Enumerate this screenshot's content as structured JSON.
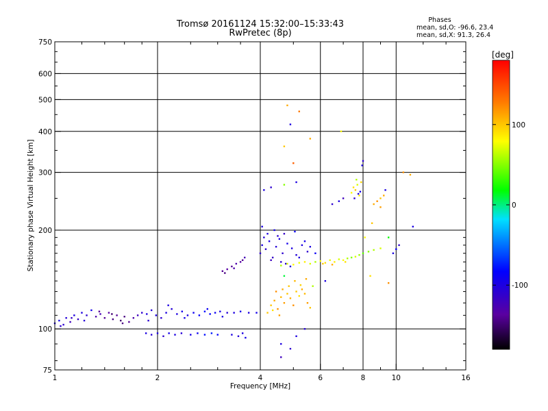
{
  "chart_data": {
    "type": "scatter",
    "title": "Tromsø 20161124 15:32:00–15:33:43",
    "subtitle": "RwPretec (8p)",
    "stats": {
      "heading": "Phases",
      "o_line": "mean, sd,O: -96.6, 23.4",
      "x_line": "mean, sd,X:  91.3, 26.4"
    },
    "xlabel": "Frequency [MHz]",
    "ylabel": "Stationary phase Virtual Height [km]",
    "xscale": "log",
    "yscale": "log",
    "xlim": [
      1,
      16
    ],
    "ylim": [
      75,
      750
    ],
    "xticks": [
      1,
      2,
      4,
      6,
      8,
      10,
      16
    ],
    "xtick_labels": [
      "1",
      "2",
      "4",
      "6",
      "8",
      "10",
      "16"
    ],
    "yticks": [
      75,
      100,
      200,
      300,
      400,
      500,
      600,
      750
    ],
    "ytick_labels": [
      "75",
      "100",
      "200",
      "300",
      "400",
      "500",
      "600",
      "750"
    ],
    "grid_x": [
      1,
      2,
      4,
      6,
      8,
      10
    ],
    "grid_y": [
      100,
      200,
      300,
      400,
      500,
      600
    ],
    "grid": true,
    "colorbar": {
      "label": "[deg]",
      "min": -180,
      "max": 180,
      "ticks": [
        100,
        0,
        -100
      ],
      "tick_labels": [
        "100",
        "0",
        "-100"
      ]
    },
    "series": [
      {
        "values": [
          [
            1.0,
            104,
            -100
          ],
          [
            1.03,
            106,
            -95
          ],
          [
            1.06,
            103,
            -110
          ],
          [
            1.08,
            108,
            -105
          ],
          [
            1.11,
            105,
            -120
          ],
          [
            1.14,
            110,
            -100
          ],
          [
            1.17,
            107,
            -115
          ],
          [
            1.2,
            112,
            -100
          ],
          [
            1.24,
            110,
            -110
          ],
          [
            1.28,
            114,
            -95
          ],
          [
            1.32,
            109,
            -130
          ],
          [
            1.36,
            111,
            -125
          ],
          [
            1.4,
            108,
            -140
          ],
          [
            1.44,
            112,
            -135
          ],
          [
            1.48,
            107,
            -145
          ],
          [
            1.52,
            110,
            -140
          ],
          [
            1.56,
            106,
            -150
          ],
          [
            1.6,
            109,
            -145
          ],
          [
            1.65,
            105,
            -140
          ],
          [
            1.7,
            108,
            -130
          ],
          [
            1.75,
            110,
            -120
          ],
          [
            1.8,
            112,
            -110
          ],
          [
            1.86,
            111,
            -100
          ],
          [
            1.92,
            114,
            -105
          ],
          [
            1.98,
            110,
            -100
          ],
          [
            2.05,
            108,
            -110
          ],
          [
            2.12,
            112,
            -100
          ],
          [
            2.2,
            115,
            -105
          ],
          [
            2.28,
            111,
            -100
          ],
          [
            2.36,
            113,
            -95
          ],
          [
            2.45,
            110,
            -100
          ],
          [
            2.55,
            112,
            -90
          ],
          [
            2.65,
            110,
            -85
          ],
          [
            2.75,
            113,
            -80
          ],
          [
            2.85,
            111,
            -85
          ],
          [
            2.95,
            112,
            -90
          ],
          [
            3.05,
            113,
            -100
          ],
          [
            3.2,
            112,
            -105
          ],
          [
            3.35,
            112,
            -100
          ],
          [
            3.5,
            113,
            -95
          ],
          [
            3.7,
            112,
            -100
          ],
          [
            3.9,
            112,
            -95
          ],
          [
            1.04,
            102,
            -110
          ],
          [
            1.12,
            108,
            -115
          ],
          [
            1.22,
            106,
            -105
          ],
          [
            1.35,
            113,
            -140
          ],
          [
            1.47,
            111,
            -150
          ],
          [
            1.58,
            104,
            -145
          ],
          [
            1.88,
            106,
            -110
          ],
          [
            2.15,
            118,
            -100
          ],
          [
            2.4,
            108,
            -95
          ],
          [
            2.8,
            115,
            -90
          ],
          [
            3.1,
            109,
            -100
          ]
        ]
      },
      {
        "values": [
          [
            1.85,
            97,
            -100
          ],
          [
            1.92,
            96,
            -105
          ],
          [
            2.0,
            97,
            -100
          ],
          [
            2.08,
            95,
            -110
          ],
          [
            2.16,
            97,
            -95
          ],
          [
            2.25,
            96,
            -100
          ],
          [
            2.35,
            97,
            -105
          ],
          [
            2.5,
            96,
            -95
          ],
          [
            2.62,
            97,
            -90
          ],
          [
            2.75,
            96,
            -80
          ],
          [
            2.88,
            97,
            -75
          ],
          [
            3.0,
            96,
            -85
          ],
          [
            3.3,
            96,
            -100
          ],
          [
            3.45,
            95,
            -105
          ],
          [
            3.55,
            97,
            -100
          ],
          [
            3.62,
            94,
            -95
          ]
        ]
      },
      {
        "values": [
          [
            3.1,
            150,
            -140
          ],
          [
            3.2,
            152,
            -135
          ],
          [
            3.3,
            155,
            -140
          ],
          [
            3.4,
            158,
            -130
          ],
          [
            3.5,
            160,
            -135
          ],
          [
            3.6,
            165,
            -125
          ],
          [
            3.15,
            148,
            -145
          ],
          [
            3.35,
            153,
            -130
          ],
          [
            3.55,
            162,
            -140
          ]
        ]
      },
      {
        "values": [
          [
            4.0,
            170,
            -110
          ],
          [
            4.05,
            180,
            -100
          ],
          [
            4.1,
            190,
            -105
          ],
          [
            4.15,
            175,
            -110
          ],
          [
            4.25,
            185,
            -100
          ],
          [
            4.35,
            165,
            -115
          ],
          [
            4.45,
            178,
            -105
          ],
          [
            4.55,
            188,
            -100
          ],
          [
            4.65,
            170,
            -110
          ],
          [
            4.8,
            182,
            -95
          ],
          [
            4.95,
            176,
            -100
          ],
          [
            5.1,
            168,
            -105
          ],
          [
            5.3,
            180,
            -100
          ],
          [
            5.5,
            172,
            -110
          ],
          [
            4.2,
            195,
            -100
          ],
          [
            4.4,
            200,
            -95
          ],
          [
            4.6,
            160,
            -110
          ],
          [
            4.75,
            158,
            -105
          ],
          [
            4.9,
            155,
            -100
          ],
          [
            5.05,
            198,
            -90
          ],
          [
            5.2,
            165,
            -100
          ],
          [
            4.3,
            162,
            -120
          ],
          [
            4.5,
            192,
            -110
          ],
          [
            5.4,
            185,
            -95
          ],
          [
            5.6,
            178,
            -100
          ],
          [
            5.8,
            170,
            -90
          ],
          [
            4.05,
            205,
            -100
          ],
          [
            4.7,
            195,
            -115
          ]
        ]
      },
      {
        "values": [
          [
            4.6,
            156,
            60
          ],
          [
            4.8,
            158,
            70
          ],
          [
            5.0,
            157,
            80
          ],
          [
            5.2,
            159,
            75
          ],
          [
            5.4,
            160,
            85
          ],
          [
            5.6,
            158,
            70
          ],
          [
            5.8,
            160,
            60
          ],
          [
            6.0,
            161,
            80
          ],
          [
            6.2,
            159,
            90
          ],
          [
            6.4,
            162,
            75
          ],
          [
            6.6,
            160,
            85
          ],
          [
            6.8,
            163,
            70
          ],
          [
            7.0,
            162,
            80
          ],
          [
            7.2,
            164,
            60
          ],
          [
            7.4,
            165,
            50
          ],
          [
            7.6,
            166,
            70
          ],
          [
            7.8,
            168,
            55
          ],
          [
            8.0,
            170,
            40
          ],
          [
            8.3,
            172,
            50
          ],
          [
            8.6,
            174,
            60
          ],
          [
            9.0,
            176,
            70
          ],
          [
            6.1,
            158,
            100
          ],
          [
            6.5,
            157,
            110
          ],
          [
            7.1,
            160,
            90
          ]
        ]
      },
      {
        "values": [
          [
            4.3,
            118,
            100
          ],
          [
            4.4,
            122,
            110
          ],
          [
            4.5,
            115,
            120
          ],
          [
            4.6,
            125,
            105
          ],
          [
            4.7,
            120,
            115
          ],
          [
            4.8,
            128,
            100
          ],
          [
            4.9,
            124,
            110
          ],
          [
            5.0,
            118,
            120
          ],
          [
            5.1,
            130,
            100
          ],
          [
            5.2,
            126,
            90
          ],
          [
            5.3,
            132,
            110
          ],
          [
            5.4,
            128,
            105
          ],
          [
            5.5,
            120,
            115
          ],
          [
            4.2,
            112,
            100
          ],
          [
            4.35,
            114,
            90
          ],
          [
            4.45,
            130,
            120
          ],
          [
            4.65,
            132,
            110
          ],
          [
            4.85,
            135,
            100
          ],
          [
            5.05,
            140,
            105
          ],
          [
            5.25,
            136,
            95
          ],
          [
            5.45,
            142,
            110
          ],
          [
            5.6,
            116,
            100
          ],
          [
            4.55,
            110,
            115
          ]
        ]
      },
      {
        "values": [
          [
            7.4,
            260,
            80
          ],
          [
            7.5,
            270,
            90
          ],
          [
            7.6,
            265,
            100
          ],
          [
            7.7,
            275,
            70
          ],
          [
            7.8,
            255,
            85
          ],
          [
            7.9,
            280,
            95
          ],
          [
            7.55,
            250,
            -110
          ],
          [
            7.75,
            258,
            -100
          ],
          [
            7.85,
            262,
            -95
          ],
          [
            7.65,
            285,
            60
          ]
        ]
      },
      {
        "values": [
          [
            8.6,
            240,
            110
          ],
          [
            8.8,
            245,
            120
          ],
          [
            9.0,
            250,
            100
          ],
          [
            9.2,
            255,
            110
          ],
          [
            9.0,
            235,
            115
          ]
        ]
      },
      {
        "values": [
          [
            4.1,
            265,
            -100
          ],
          [
            4.3,
            270,
            -110
          ],
          [
            4.7,
            275,
            50
          ],
          [
            5.1,
            280,
            -100
          ],
          [
            6.5,
            240,
            -110
          ],
          [
            6.8,
            245,
            -100
          ],
          [
            7.0,
            250,
            -120
          ],
          [
            8.0,
            325,
            -110
          ],
          [
            7.95,
            315,
            -100
          ],
          [
            4.8,
            480,
            110
          ],
          [
            5.2,
            460,
            130
          ],
          [
            4.9,
            420,
            -100
          ],
          [
            5.6,
            380,
            110
          ],
          [
            6.9,
            400,
            80
          ],
          [
            4.7,
            360,
            100
          ],
          [
            5.0,
            320,
            140
          ],
          [
            9.3,
            265,
            -100
          ],
          [
            10.5,
            300,
            120
          ],
          [
            11.0,
            295,
            110
          ],
          [
            11.2,
            205,
            -100
          ],
          [
            10.2,
            180,
            -110
          ],
          [
            9.8,
            170,
            -100
          ],
          [
            9.5,
            190,
            20
          ],
          [
            10.0,
            175,
            -90
          ],
          [
            4.6,
            90,
            -100
          ],
          [
            4.9,
            87,
            -110
          ],
          [
            4.6,
            82,
            -120
          ],
          [
            5.1,
            95,
            -100
          ],
          [
            5.4,
            100,
            -105
          ],
          [
            4.7,
            145,
            10
          ],
          [
            5.7,
            135,
            60
          ],
          [
            6.2,
            140,
            -100
          ],
          [
            8.4,
            145,
            90
          ],
          [
            9.5,
            138,
            120
          ],
          [
            8.1,
            190,
            80
          ],
          [
            8.5,
            210,
            100
          ]
        ]
      }
    ]
  }
}
